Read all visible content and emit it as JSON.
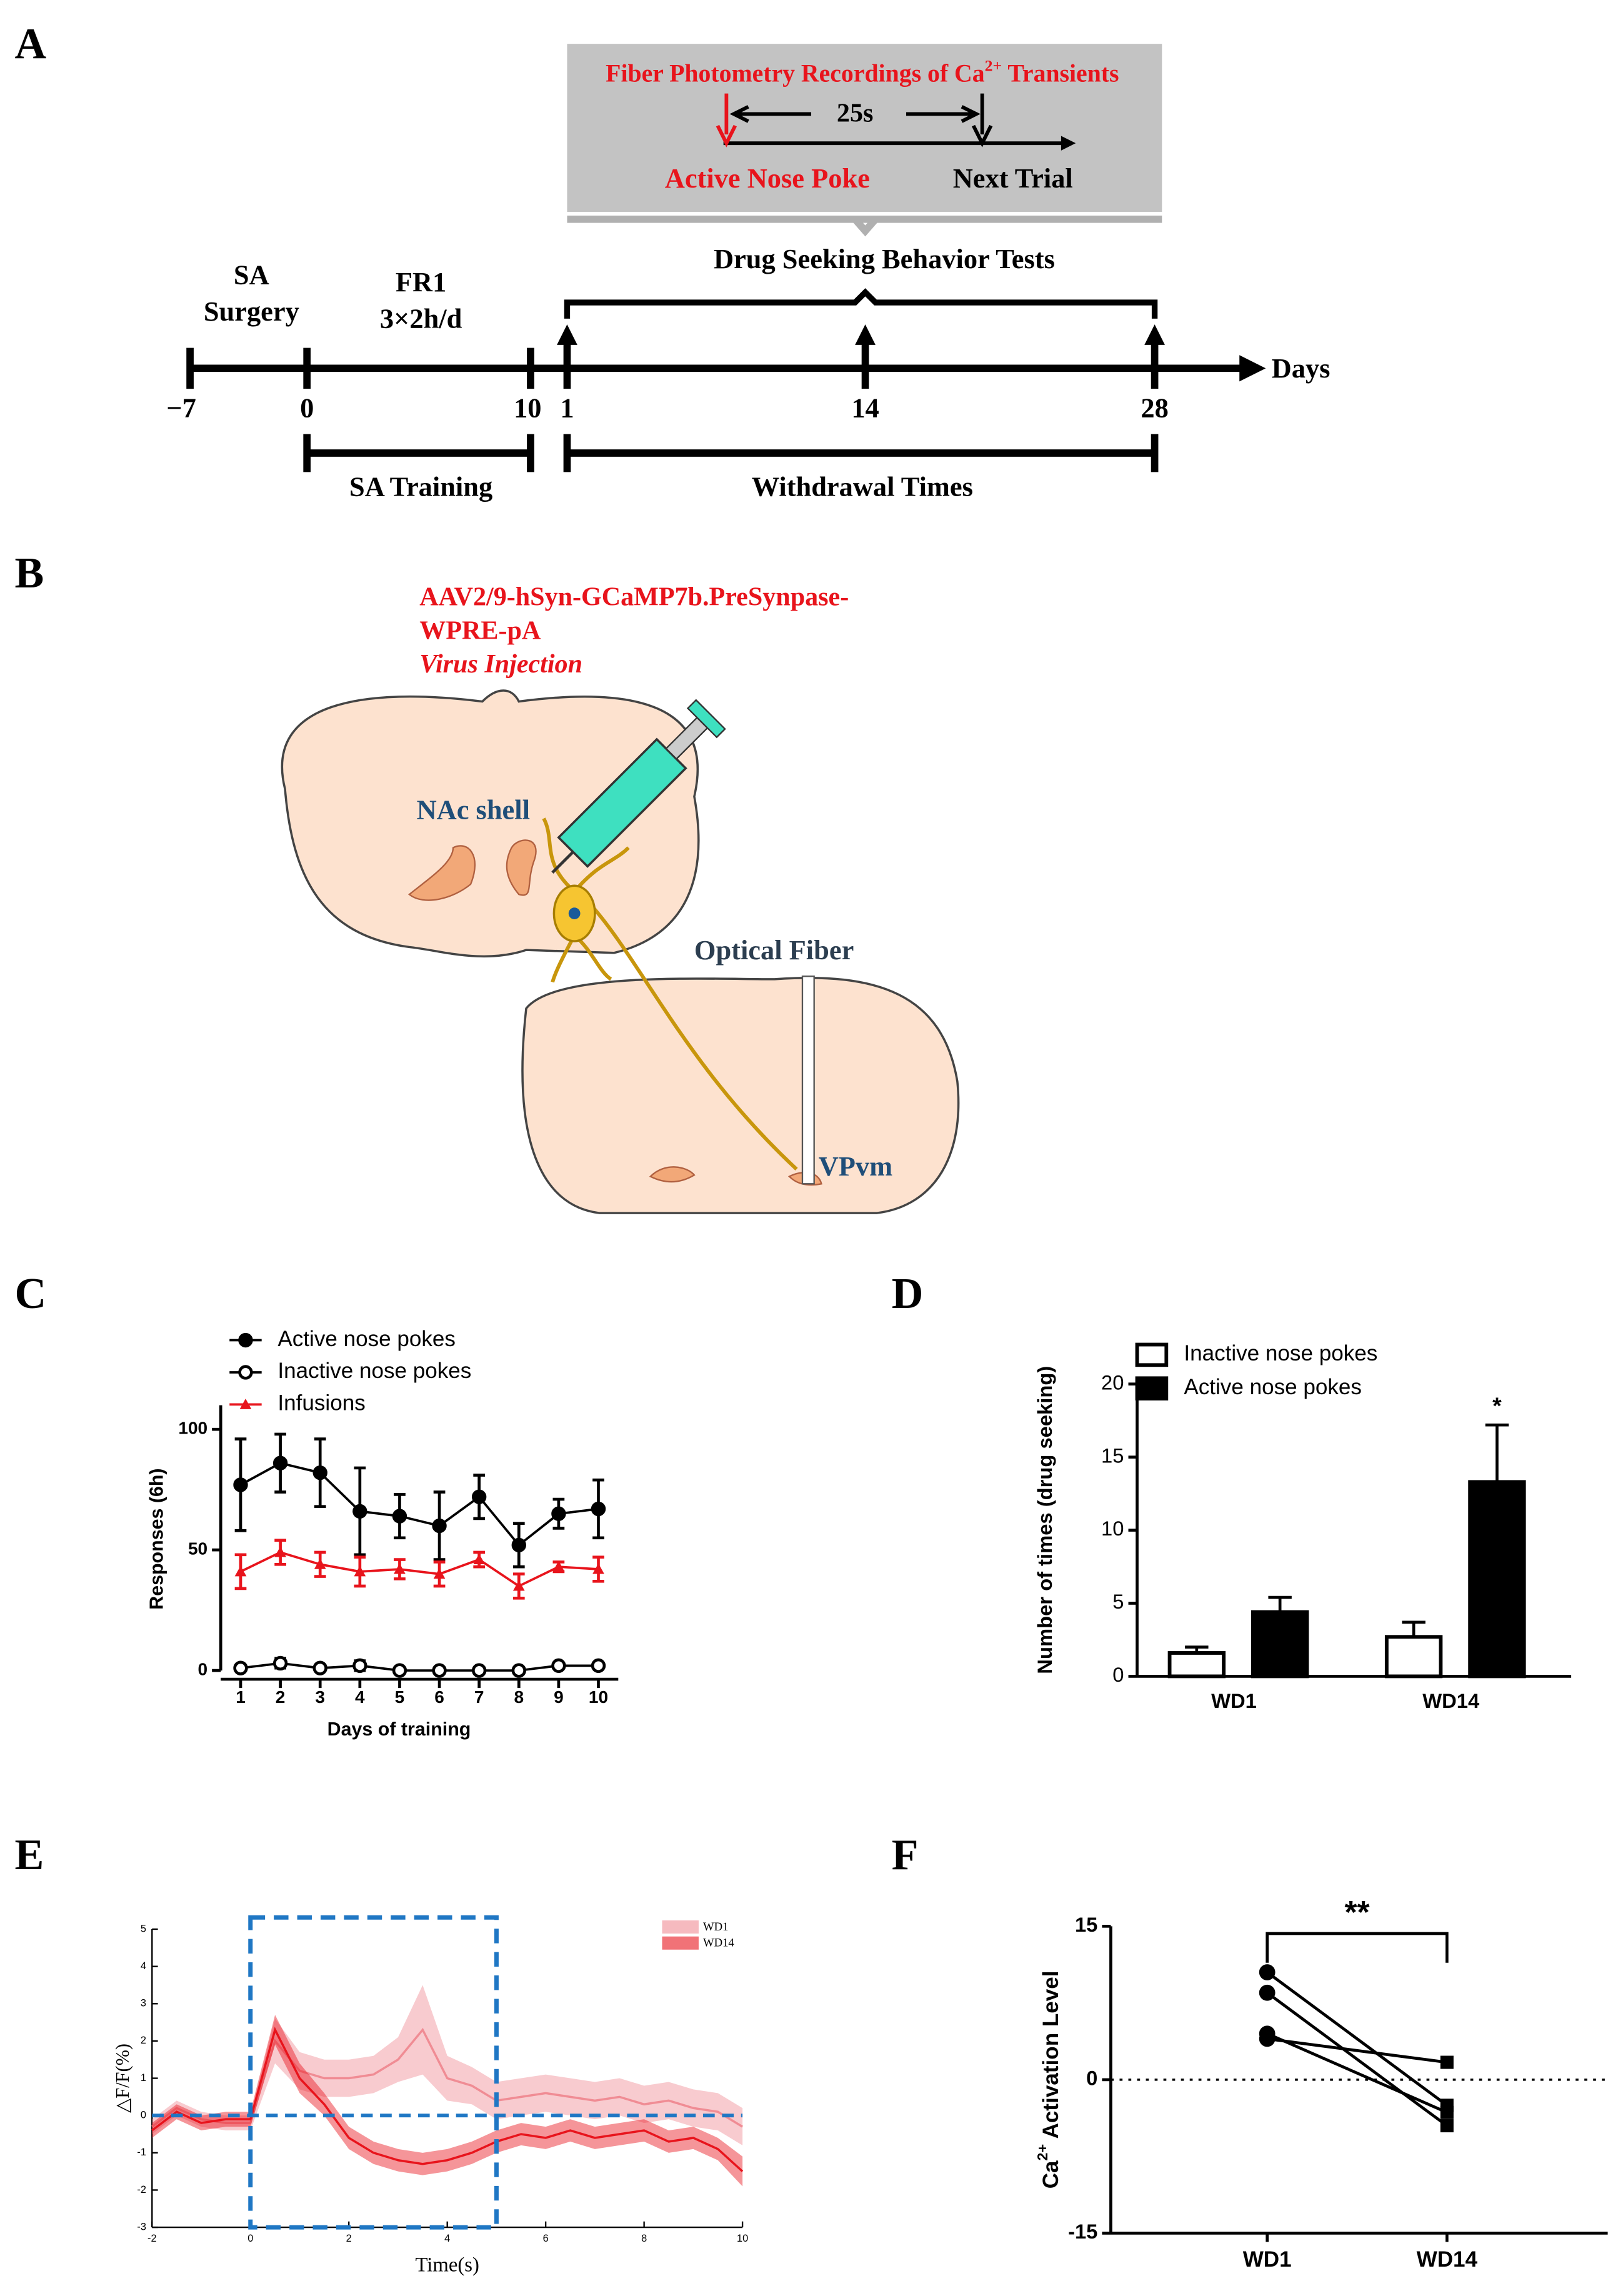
{
  "panel_labels": [
    "A",
    "B",
    "C",
    "D",
    "E",
    "F"
  ],
  "timeline": {
    "recording_title": {
      "text": "Fiber Photometry Recordings of Ca",
      "sup": "2+",
      "rest": " Transients"
    },
    "interval": "25s",
    "event": "Active Nose Poke",
    "next": "Next Trial",
    "tests": "Drug Seeking Behavior Tests",
    "surgery": [
      "SA",
      "Surgery"
    ],
    "training_schedule": [
      "FR1",
      "3×2h/d"
    ],
    "axis_label": "Days",
    "ticks": [
      "−7",
      "0",
      "10",
      "1",
      "14",
      "28"
    ],
    "training": "SA Training",
    "withdrawal": "Withdrawal Times"
  },
  "schematic": {
    "virus": [
      "AAV2/9-hSyn-GCaMP7b.PreSynpase-",
      "WPRE-pA"
    ],
    "injection": "Virus Injection",
    "source": "NAc shell",
    "fiber": "Optical Fiber",
    "target": "VPvm"
  },
  "chart_data": [
    {
      "type": "line",
      "x": [
        1,
        2,
        3,
        4,
        5,
        6,
        7,
        8,
        9,
        10
      ],
      "xlim": [
        0.5,
        10.5
      ],
      "xticks": [
        1,
        2,
        3,
        4,
        5,
        6,
        7,
        8,
        9,
        10
      ],
      "ylim": [
        0,
        110
      ],
      "yticks": [
        0,
        50,
        100
      ],
      "ylabel": "Responses (6h)",
      "xlabel": "Days of training",
      "series": [
        {
          "name": "Active nose pokes",
          "color": "#000000",
          "marker": "circle",
          "values": [
            77,
            86,
            82,
            66,
            64,
            60,
            72,
            52,
            65,
            67
          ],
          "errors": [
            19,
            12,
            14,
            18,
            9,
            14,
            9,
            9,
            6,
            12
          ]
        },
        {
          "name": "Inactive nose pokes",
          "color": "#000000",
          "marker": "open-circle",
          "values": [
            1,
            3,
            1,
            2,
            0,
            0,
            0,
            0,
            2,
            2
          ],
          "errors": [
            1,
            2,
            1,
            2,
            0.5,
            0.5,
            0.5,
            1,
            1,
            1
          ]
        },
        {
          "name": "Infusions",
          "color": "#e8141c",
          "marker": "triangle",
          "values": [
            41,
            49,
            44,
            41,
            42,
            40,
            46,
            35,
            43,
            42
          ],
          "errors": [
            7,
            5,
            5,
            6,
            4,
            5,
            3,
            5,
            2,
            5
          ]
        }
      ]
    },
    {
      "type": "bar",
      "categories": [
        "WD1",
        "WD14"
      ],
      "ylim": [
        0,
        20
      ],
      "yticks": [
        0,
        5,
        10,
        15,
        20
      ],
      "ylabel": "Number of times (drug seeking)",
      "annotation": "*",
      "series": [
        {
          "name": "Inactive nose pokes",
          "color": "#ffffff",
          "values": [
            1.6,
            2.7
          ],
          "errors": [
            0.4,
            1.0
          ]
        },
        {
          "name": "Active nose pokes",
          "color": "#000000",
          "values": [
            4.4,
            13.3
          ],
          "errors": [
            1.0,
            3.9
          ]
        }
      ]
    },
    {
      "type": "band",
      "x": [
        -2,
        -1.5,
        -1,
        -0.5,
        0,
        0.5,
        1,
        1.5,
        2,
        2.5,
        3,
        3.5,
        4,
        4.5,
        5,
        5.5,
        6,
        6.5,
        7,
        7.5,
        8,
        8.5,
        9,
        9.5,
        10
      ],
      "xlim": [
        -2,
        10
      ],
      "xticks": [
        -2,
        0,
        2,
        4,
        6,
        8,
        10
      ],
      "ylim": [
        -3,
        5
      ],
      "yticks": [
        -3,
        -2,
        -1,
        0,
        1,
        2,
        3,
        4,
        5
      ],
      "ylabel": "△F/F(%)",
      "xlabel": "Time(s)",
      "highlight_x": [
        0,
        5
      ],
      "hline": 0,
      "series": [
        {
          "name": "WD1",
          "color": "#f08c94",
          "values": [
            -0.3,
            0.2,
            -0.1,
            -0.2,
            -0.2,
            2.0,
            1.2,
            1.0,
            1.0,
            1.1,
            1.5,
            2.3,
            1.0,
            0.8,
            0.4,
            0.5,
            0.6,
            0.5,
            0.4,
            0.5,
            0.3,
            0.4,
            0.2,
            0.1,
            -0.3
          ],
          "errors": [
            0.2,
            0.2,
            0.2,
            0.2,
            0.2,
            0.6,
            0.5,
            0.5,
            0.5,
            0.5,
            0.6,
            1.2,
            0.6,
            0.5,
            0.5,
            0.5,
            0.5,
            0.5,
            0.5,
            0.5,
            0.5,
            0.5,
            0.5,
            0.5,
            0.5
          ]
        },
        {
          "name": "WD14",
          "color": "#e8141c",
          "values": [
            -0.4,
            0.1,
            -0.2,
            -0.1,
            -0.1,
            2.3,
            1.0,
            0.3,
            -0.6,
            -1.0,
            -1.2,
            -1.3,
            -1.2,
            -1.0,
            -0.7,
            -0.5,
            -0.6,
            -0.4,
            -0.6,
            -0.5,
            -0.4,
            -0.7,
            -0.6,
            -0.9,
            -1.5
          ],
          "errors": [
            0.2,
            0.2,
            0.2,
            0.2,
            0.2,
            0.4,
            0.4,
            0.3,
            0.3,
            0.3,
            0.3,
            0.3,
            0.3,
            0.3,
            0.3,
            0.3,
            0.3,
            0.3,
            0.3,
            0.3,
            0.3,
            0.3,
            0.3,
            0.3,
            0.4
          ]
        }
      ]
    },
    {
      "type": "paired",
      "categories": [
        "WD1",
        "WD14"
      ],
      "ylim": [
        -15,
        15
      ],
      "yticks": [
        -15,
        0,
        15
      ],
      "ylabel": {
        "text": "Ca",
        "sup": "2+",
        "rest": " Activation Level"
      },
      "annotation": "**",
      "hline": 0,
      "pairs": [
        [
          10.5,
          -2.5
        ],
        [
          8.5,
          -4.5
        ],
        [
          4.5,
          -3.2
        ],
        [
          4.0,
          1.7
        ]
      ]
    }
  ]
}
